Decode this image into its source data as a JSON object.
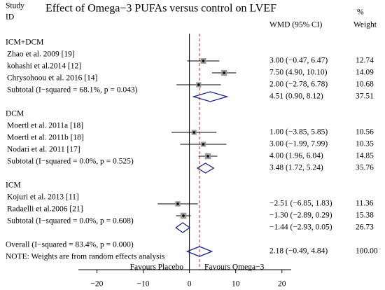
{
  "chart_data": {
    "type": "forest",
    "title": "Effect of Omega−3 PUFAs versus control on LVEF",
    "header": {
      "study": "Study",
      "id": "ID",
      "ci": "WMD (95% CI)",
      "pct": "%",
      "weight": "Weight"
    },
    "rows": [
      {
        "kind": "group",
        "label": "ICM+DCM"
      },
      {
        "kind": "study",
        "label": "Zhao et al. 2009 [19]",
        "wmd": 3.0,
        "lower": -0.47,
        "upper": 6.47,
        "value_label": "3.00 (−0.47, 6.47)",
        "weight": 12.74
      },
      {
        "kind": "study",
        "label": "kohashi et al.2014 [12]",
        "wmd": 7.5,
        "lower": 4.9,
        "upper": 10.1,
        "value_label": "7.50 (4.90, 10.10)",
        "weight": 14.09
      },
      {
        "kind": "study",
        "label": "Chrysohoou et al. 2016 [14]",
        "wmd": 2.0,
        "lower": -2.78,
        "upper": 6.78,
        "value_label": "2.00 (−2.78, 6.78)",
        "weight": 10.68
      },
      {
        "kind": "subtotal",
        "label": "Subtotal  (I−squared = 68.1%, p = 0.043)",
        "wmd": 4.51,
        "lower": 0.9,
        "upper": 8.12,
        "value_label": "4.51 (0.90, 8.12)",
        "weight": 37.51
      },
      {
        "kind": "group",
        "label": "DCM"
      },
      {
        "kind": "study",
        "label": "Moertl et al. 2011a [18]",
        "wmd": 1.0,
        "lower": -3.85,
        "upper": 5.85,
        "value_label": "1.00 (−3.85, 5.85)",
        "weight": 10.56
      },
      {
        "kind": "study",
        "label": "Moertl et al. 2011b [18]",
        "wmd": 3.0,
        "lower": -1.99,
        "upper": 7.99,
        "value_label": "3.00 (−1.99, 7.99)",
        "weight": 10.35
      },
      {
        "kind": "study",
        "label": "Nodari et al. 2011 [17]",
        "wmd": 4.0,
        "lower": 1.96,
        "upper": 6.04,
        "value_label": "4.00 (1.96, 6.04)",
        "weight": 14.85
      },
      {
        "kind": "subtotal",
        "label": "Subtotal  (I−squared = 0.0%, p = 0.525)",
        "wmd": 3.48,
        "lower": 1.72,
        "upper": 5.24,
        "value_label": "3.48 (1.72, 5.24)",
        "weight": 35.76
      },
      {
        "kind": "group",
        "label": "ICM"
      },
      {
        "kind": "study",
        "label": "Kojuri et al. 2013 [11]",
        "wmd": -2.51,
        "lower": -6.85,
        "upper": 1.83,
        "value_label": "−2.51 (−6.85, 1.83)",
        "weight": 11.36
      },
      {
        "kind": "study",
        "label": "Radaelli et al.2006 [21]",
        "wmd": -1.3,
        "lower": -2.89,
        "upper": 0.29,
        "value_label": "−1.30 (−2.89, 0.29)",
        "weight": 15.38
      },
      {
        "kind": "subtotal",
        "label": "Subtotal  (I−squared = 0.0%, p = 0.608)",
        "wmd": -1.44,
        "lower": -2.93,
        "upper": 0.05,
        "value_label": "−1.44 (−2.93, 0.05)",
        "weight": 26.73
      },
      {
        "kind": "overall",
        "label": "Overall  (I−squared = 83.4%, p = 0.000)",
        "wmd": 2.18,
        "lower": -0.49,
        "upper": 4.84,
        "value_label": "2.18 (−0.49, 4.84)",
        "weight": 100.0,
        "weight_label": "100.00"
      }
    ],
    "note": "NOTE: Weights are from random effects analysis",
    "left_label": "Favours Placebo",
    "right_label": "Favours Omega−3",
    "reference_line": 0,
    "xlim": [
      -24,
      22
    ],
    "xticks": [
      {
        "value": -20,
        "label": "−20"
      },
      {
        "value": -10,
        "label": "−10"
      },
      0,
      10,
      20
    ],
    "marker_color": "#999999",
    "diamond_color": "#1a237e",
    "overall_line_color": "#c62828"
  }
}
